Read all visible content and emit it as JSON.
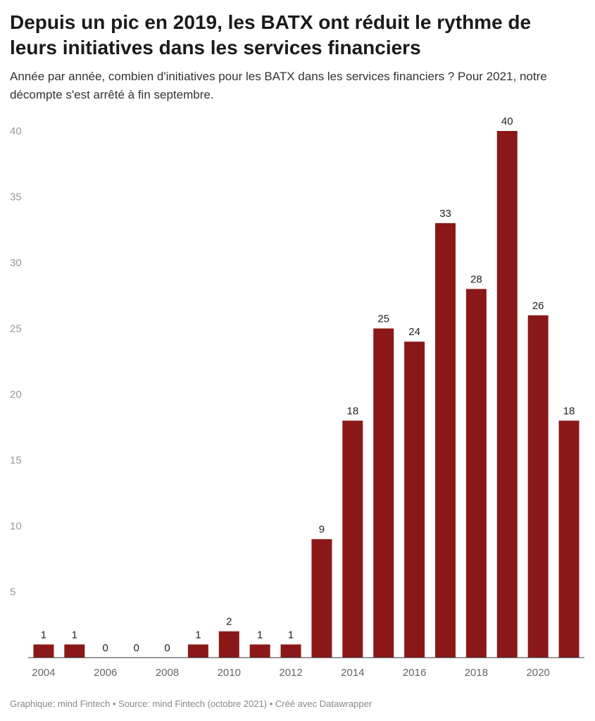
{
  "chart_data": {
    "type": "bar",
    "title": "Depuis un pic en 2019, les BATX ont réduit le rythme de leurs initiatives dans les services financiers",
    "subtitle": "Année par année, combien d'initiatives pour les BATX dans les services financiers ? Pour 2021, notre décompte s'est arrêté à fin septembre.",
    "categories": [
      "2004",
      "2005",
      "2006",
      "2007",
      "2008",
      "2009",
      "2010",
      "2011",
      "2012",
      "2013",
      "2014",
      "2015",
      "2016",
      "2017",
      "2018",
      "2019",
      "2020",
      "2021"
    ],
    "values": [
      1,
      1,
      0,
      0,
      0,
      1,
      2,
      1,
      1,
      9,
      18,
      25,
      24,
      33,
      28,
      40,
      26,
      18
    ],
    "x_tick_labels": [
      "2004",
      "2006",
      "2008",
      "2010",
      "2012",
      "2014",
      "2016",
      "2018",
      "2020"
    ],
    "y_ticks": [
      5,
      10,
      15,
      20,
      25,
      30,
      35,
      40
    ],
    "ylim": [
      0,
      40
    ],
    "bar_color": "#8b1818",
    "grid": false,
    "data_labels": true,
    "footer": "Graphique: mind Fintech • Source: mind Fintech (octobre 2021) • Créé avec Datawrapper"
  }
}
